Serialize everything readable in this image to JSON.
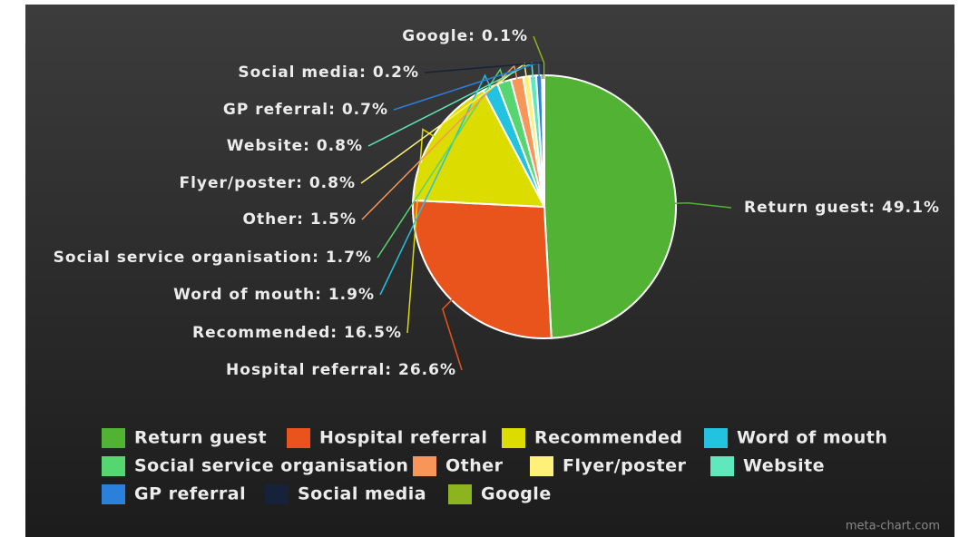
{
  "chart_data": {
    "type": "pie",
    "categories": [
      "Return guest",
      "Hospital referral",
      "Recommended",
      "Word of mouth",
      "Social service organisation",
      "Other",
      "Flyer/poster",
      "Website",
      "GP referral",
      "Social media",
      "Google"
    ],
    "values": [
      49.1,
      26.6,
      16.5,
      1.9,
      1.7,
      1.5,
      0.8,
      0.8,
      0.7,
      0.2,
      0.1
    ],
    "value_labels": [
      "Return guest: 49.1%",
      "Hospital referral: 26.6%",
      "Recommended: 16.5%",
      "Word of mouth: 1.9%",
      "Social service organisation: 1.7%",
      "Other: 1.5%",
      "Flyer/poster: 0.8%",
      "Website: 0.8%",
      "GP referral: 0.7%",
      "Social media: 0.2%",
      "Google: 0.1%"
    ],
    "colors": [
      "#52b233",
      "#e8541c",
      "#dcdc00",
      "#22c2e0",
      "#55d670",
      "#f79658",
      "#fff07a",
      "#5ee8bb",
      "#2b80dc",
      "#15223a",
      "#8cb41e"
    ],
    "legend": true,
    "watermark": "meta-chart.com"
  }
}
